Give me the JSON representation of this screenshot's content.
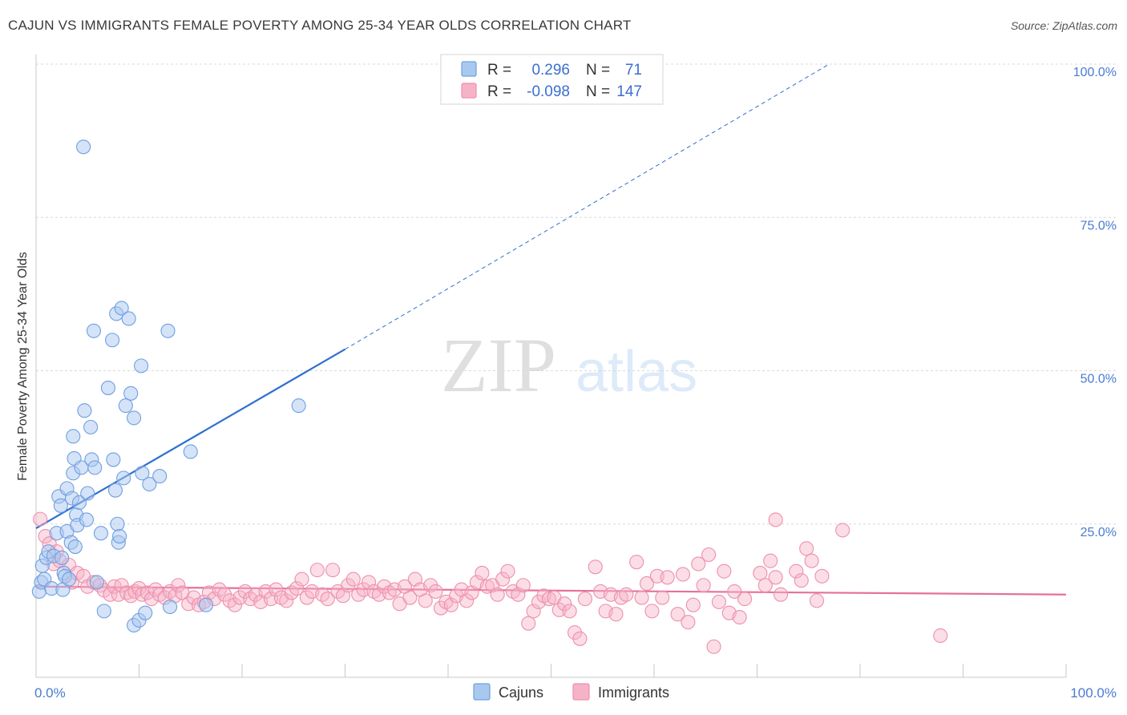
{
  "header": {
    "title": "CAJUN VS IMMIGRANTS FEMALE POVERTY AMONG 25-34 YEAR OLDS CORRELATION CHART",
    "source": "Source: ZipAtlas.com"
  },
  "watermark": {
    "zip": "ZIP",
    "atlas": "atlas"
  },
  "legend": {
    "rows": [
      {
        "r_label": "R =",
        "r_value": "0.296",
        "n_label": "N =",
        "n_value": "71"
      },
      {
        "r_label": "R =",
        "r_value": "-0.098",
        "n_label": "N =",
        "n_value": "147"
      }
    ],
    "bottom": [
      "Cajuns",
      "Immigrants"
    ]
  },
  "colors": {
    "cajun_fill": "#a9c8f0",
    "cajun_stroke": "#6f9fe0",
    "cajun_line": "#2f6fcf",
    "immigrant_fill": "#f6b3c8",
    "immigrant_stroke": "#ee8fae",
    "immigrant_line": "#e4719a",
    "grid": "#d9d9d9",
    "tick_text": "#4a7bd0"
  },
  "chart_data": {
    "type": "scatter",
    "title": "CAJUN VS IMMIGRANTS FEMALE POVERTY AMONG 25-34 YEAR OLDS CORRELATION CHART",
    "xlabel": "",
    "ylabel": "Female Poverty Among 25-34 Year Olds",
    "xlim": [
      0,
      100
    ],
    "ylim": [
      0,
      100
    ],
    "x_tick_labels": [
      "0.0%",
      "100.0%"
    ],
    "y_tick_labels": [
      "25.0%",
      "50.0%",
      "75.0%",
      "100.0%"
    ],
    "y_ticks": [
      25,
      50,
      75,
      100
    ],
    "grid": true,
    "legend_position": "top-center",
    "series": [
      {
        "name": "Cajuns",
        "r": 0.296,
        "n": 71,
        "trend": {
          "x_start": 0,
          "y_start": 24.3,
          "x_solid_end": 30,
          "y_solid_end": 53.5,
          "x_dash_end": 77,
          "y_dash_end": 100
        },
        "points": [
          [
            0.3,
            14.0
          ],
          [
            0.5,
            15.5
          ],
          [
            0.6,
            18.2
          ],
          [
            0.8,
            16.0
          ],
          [
            1.0,
            19.5
          ],
          [
            1.2,
            20.5
          ],
          [
            1.5,
            14.5
          ],
          [
            1.7,
            19.8
          ],
          [
            2.0,
            23.5
          ],
          [
            2.2,
            29.5
          ],
          [
            2.4,
            28.0
          ],
          [
            2.5,
            19.5
          ],
          [
            2.6,
            14.3
          ],
          [
            2.7,
            17.0
          ],
          [
            2.8,
            16.5
          ],
          [
            3.0,
            23.8
          ],
          [
            3.0,
            30.8
          ],
          [
            3.2,
            16.0
          ],
          [
            3.4,
            22.0
          ],
          [
            3.5,
            29.2
          ],
          [
            3.6,
            33.3
          ],
          [
            3.6,
            39.3
          ],
          [
            3.7,
            35.7
          ],
          [
            3.8,
            21.3
          ],
          [
            3.9,
            26.5
          ],
          [
            4.0,
            24.8
          ],
          [
            4.2,
            28.5
          ],
          [
            4.4,
            34.2
          ],
          [
            4.6,
            86.5
          ],
          [
            4.7,
            43.5
          ],
          [
            4.9,
            25.7
          ],
          [
            5.0,
            30.0
          ],
          [
            5.3,
            40.8
          ],
          [
            5.4,
            35.5
          ],
          [
            5.6,
            56.5
          ],
          [
            5.7,
            34.2
          ],
          [
            5.9,
            15.5
          ],
          [
            6.3,
            23.5
          ],
          [
            6.6,
            10.8
          ],
          [
            7.0,
            47.2
          ],
          [
            7.4,
            55.0
          ],
          [
            7.5,
            35.5
          ],
          [
            7.7,
            30.5
          ],
          [
            7.8,
            59.3
          ],
          [
            7.9,
            25.0
          ],
          [
            8.0,
            22.0
          ],
          [
            8.1,
            23.0
          ],
          [
            8.3,
            60.2
          ],
          [
            8.5,
            32.5
          ],
          [
            8.7,
            44.3
          ],
          [
            9.0,
            58.5
          ],
          [
            9.2,
            46.3
          ],
          [
            9.5,
            42.3
          ],
          [
            9.5,
            8.5
          ],
          [
            10.0,
            9.3
          ],
          [
            10.2,
            50.8
          ],
          [
            10.3,
            33.3
          ],
          [
            10.6,
            10.5
          ],
          [
            11.0,
            31.5
          ],
          [
            12.0,
            32.8
          ],
          [
            12.8,
            56.5
          ],
          [
            13.0,
            11.5
          ],
          [
            15.0,
            36.8
          ],
          [
            16.5,
            11.8
          ],
          [
            25.5,
            44.3
          ]
        ]
      },
      {
        "name": "Immigrants",
        "r": -0.098,
        "n": 147,
        "trend": {
          "x_start": 0,
          "y_start": 14.8,
          "x_end": 100,
          "y_end": 13.5
        },
        "points": [
          [
            0.4,
            25.8
          ],
          [
            0.9,
            23.0
          ],
          [
            1.3,
            21.8
          ],
          [
            1.7,
            18.5
          ],
          [
            2.0,
            20.5
          ],
          [
            2.3,
            19.0
          ],
          [
            3.2,
            18.3
          ],
          [
            3.5,
            15.5
          ],
          [
            4.0,
            17.0
          ],
          [
            4.6,
            16.5
          ],
          [
            5.0,
            14.8
          ],
          [
            5.6,
            15.5
          ],
          [
            6.2,
            15.0
          ],
          [
            6.6,
            14.2
          ],
          [
            7.2,
            13.5
          ],
          [
            7.6,
            14.8
          ],
          [
            8.0,
            13.5
          ],
          [
            8.3,
            15.0
          ],
          [
            8.8,
            13.8
          ],
          [
            9.2,
            13.3
          ],
          [
            9.6,
            14.0
          ],
          [
            10.0,
            14.5
          ],
          [
            10.3,
            13.5
          ],
          [
            10.8,
            13.8
          ],
          [
            11.2,
            12.8
          ],
          [
            11.6,
            14.3
          ],
          [
            12.0,
            13.5
          ],
          [
            12.5,
            13.0
          ],
          [
            13.0,
            14.0
          ],
          [
            13.5,
            13.3
          ],
          [
            13.8,
            15.0
          ],
          [
            14.2,
            13.8
          ],
          [
            14.8,
            12.0
          ],
          [
            15.3,
            13.0
          ],
          [
            15.8,
            11.8
          ],
          [
            16.3,
            12.3
          ],
          [
            16.8,
            13.8
          ],
          [
            17.3,
            12.8
          ],
          [
            17.8,
            14.3
          ],
          [
            18.3,
            13.5
          ],
          [
            18.8,
            12.5
          ],
          [
            19.3,
            11.8
          ],
          [
            19.8,
            13.0
          ],
          [
            20.3,
            14.0
          ],
          [
            20.8,
            12.8
          ],
          [
            21.3,
            13.5
          ],
          [
            21.8,
            12.3
          ],
          [
            22.3,
            14.0
          ],
          [
            22.8,
            12.8
          ],
          [
            23.3,
            14.3
          ],
          [
            23.8,
            13.0
          ],
          [
            24.3,
            12.5
          ],
          [
            24.8,
            13.8
          ],
          [
            25.3,
            14.5
          ],
          [
            25.8,
            16.0
          ],
          [
            26.3,
            13.0
          ],
          [
            26.8,
            14.0
          ],
          [
            27.3,
            17.5
          ],
          [
            27.8,
            13.5
          ],
          [
            28.3,
            12.8
          ],
          [
            28.8,
            17.5
          ],
          [
            29.3,
            14.0
          ],
          [
            29.8,
            13.3
          ],
          [
            30.3,
            15.0
          ],
          [
            30.8,
            16.0
          ],
          [
            31.3,
            13.5
          ],
          [
            31.8,
            14.3
          ],
          [
            32.3,
            15.5
          ],
          [
            32.8,
            14.0
          ],
          [
            33.3,
            13.5
          ],
          [
            33.8,
            14.8
          ],
          [
            34.3,
            13.8
          ],
          [
            34.8,
            14.3
          ],
          [
            35.3,
            12.0
          ],
          [
            35.8,
            14.8
          ],
          [
            36.3,
            13.0
          ],
          [
            36.8,
            16.0
          ],
          [
            37.3,
            14.3
          ],
          [
            37.8,
            12.5
          ],
          [
            38.3,
            15.0
          ],
          [
            38.8,
            14.0
          ],
          [
            39.3,
            11.3
          ],
          [
            39.8,
            12.3
          ],
          [
            40.3,
            11.8
          ],
          [
            40.8,
            13.3
          ],
          [
            41.3,
            14.3
          ],
          [
            41.8,
            12.5
          ],
          [
            42.3,
            13.8
          ],
          [
            42.8,
            15.5
          ],
          [
            43.3,
            17.0
          ],
          [
            43.8,
            14.8
          ],
          [
            44.3,
            15.0
          ],
          [
            44.8,
            13.5
          ],
          [
            45.3,
            16.0
          ],
          [
            45.8,
            17.3
          ],
          [
            46.3,
            14.0
          ],
          [
            46.8,
            13.5
          ],
          [
            47.3,
            15.0
          ],
          [
            47.8,
            8.8
          ],
          [
            48.3,
            10.8
          ],
          [
            48.8,
            12.3
          ],
          [
            49.3,
            13.3
          ],
          [
            49.8,
            12.8
          ],
          [
            50.3,
            13.0
          ],
          [
            50.8,
            11.0
          ],
          [
            51.3,
            12.0
          ],
          [
            51.8,
            10.8
          ],
          [
            52.3,
            7.3
          ],
          [
            52.8,
            6.3
          ],
          [
            53.3,
            12.8
          ],
          [
            54.3,
            18.0
          ],
          [
            54.8,
            14.0
          ],
          [
            55.3,
            10.8
          ],
          [
            55.8,
            13.5
          ],
          [
            56.3,
            10.3
          ],
          [
            56.8,
            13.0
          ],
          [
            57.3,
            13.5
          ],
          [
            58.3,
            18.8
          ],
          [
            58.8,
            13.0
          ],
          [
            59.3,
            15.3
          ],
          [
            59.8,
            10.8
          ],
          [
            60.3,
            16.5
          ],
          [
            60.8,
            13.0
          ],
          [
            61.3,
            16.3
          ],
          [
            62.3,
            10.3
          ],
          [
            62.8,
            16.8
          ],
          [
            63.3,
            9.0
          ],
          [
            63.8,
            11.8
          ],
          [
            64.3,
            18.5
          ],
          [
            64.8,
            15.0
          ],
          [
            65.3,
            20.0
          ],
          [
            65.8,
            5.0
          ],
          [
            66.3,
            12.3
          ],
          [
            66.8,
            17.3
          ],
          [
            67.3,
            10.5
          ],
          [
            67.8,
            14.0
          ],
          [
            68.3,
            9.8
          ],
          [
            68.8,
            12.8
          ],
          [
            70.3,
            17.0
          ],
          [
            70.8,
            15.0
          ],
          [
            71.3,
            19.0
          ],
          [
            71.8,
            16.3
          ],
          [
            72.3,
            13.5
          ],
          [
            71.8,
            25.7
          ],
          [
            73.8,
            17.3
          ],
          [
            74.3,
            15.8
          ],
          [
            74.8,
            21.0
          ],
          [
            75.3,
            19.0
          ],
          [
            75.8,
            12.5
          ],
          [
            76.3,
            16.5
          ],
          [
            78.3,
            24.0
          ],
          [
            87.8,
            6.8
          ]
        ]
      }
    ]
  }
}
